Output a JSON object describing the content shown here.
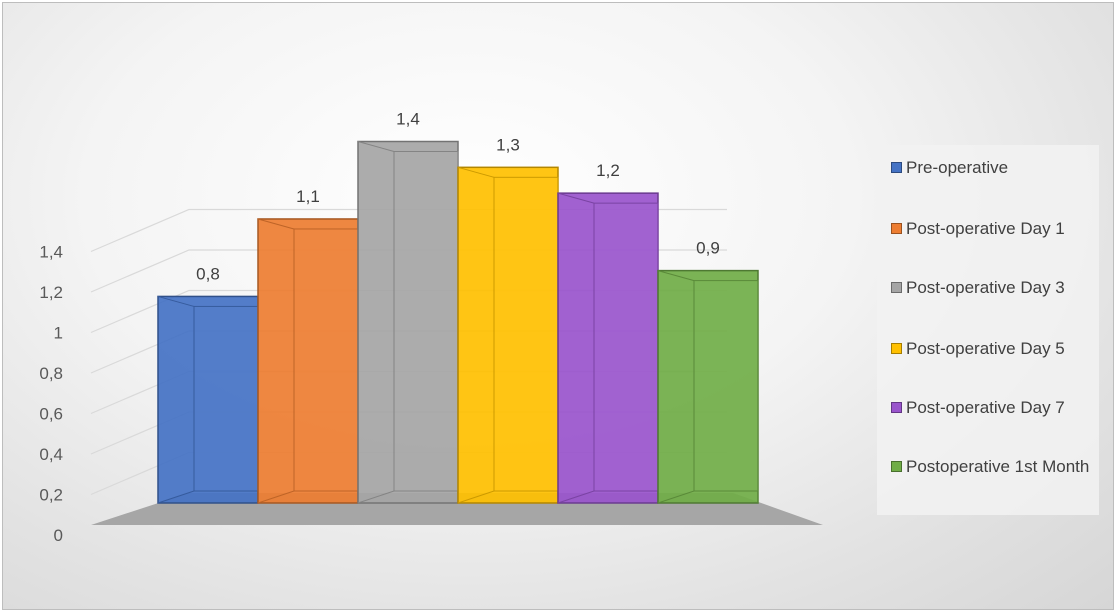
{
  "chart_data": {
    "type": "bar",
    "title": "",
    "xlabel": "",
    "ylabel": "",
    "ylim": [
      0,
      1.4
    ],
    "yticks": [
      "0",
      "0,2",
      "0,4",
      "0,6",
      "0,8",
      "1",
      "1,2",
      "1,4"
    ],
    "grid": true,
    "legend_position": "right",
    "style": "3d-clustered-column",
    "series": [
      {
        "name": "Pre-operative",
        "value": 0.8,
        "label": "0,8",
        "color": "#4472c4"
      },
      {
        "name": "Post-operative Day 1",
        "value": 1.1,
        "label": "1,1",
        "color": "#ed7d31"
      },
      {
        "name": "Post-operative Day 3",
        "value": 1.4,
        "label": "1,4",
        "color": "#a5a5a5"
      },
      {
        "name": "Post-operative Day 5",
        "value": 1.3,
        "label": "1,3",
        "color": "#ffc000"
      },
      {
        "name": "Post-operative Day 7",
        "value": 1.2,
        "label": "1,2",
        "color": "#9954cc"
      },
      {
        "name": "Postoperative 1st Month",
        "value": 0.9,
        "label": "0,9",
        "color": "#70ad47"
      }
    ]
  }
}
